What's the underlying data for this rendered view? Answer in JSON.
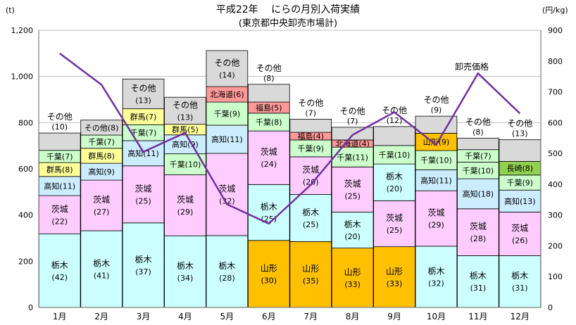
{
  "chart_data": {
    "type": "bar",
    "stacked": true,
    "title": "平成22年　 にらの月別入荷実績",
    "subtitle": "(東京都中央卸売市場計)",
    "left_unit": "(t)",
    "right_unit": "(円/kg)",
    "categories": [
      "1月",
      "2月",
      "3月",
      "4月",
      "5月",
      "6月",
      "7月",
      "8月",
      "9月",
      "10月",
      "11月",
      "12月"
    ],
    "ylim": [
      0,
      1200
    ],
    "yticks": [
      "0",
      "200",
      "400",
      "600",
      "800",
      "1,000",
      "1,200"
    ],
    "y2lim": [
      0,
      900
    ],
    "y2ticks": [
      "0",
      "100",
      "200",
      "300",
      "400",
      "500",
      "600",
      "700",
      "800",
      "900"
    ],
    "colors": {
      "栃木": "#ccffff",
      "山形": "#ffc000",
      "茨城": "#ffccff",
      "高知": "#ccecff",
      "千葉": "#ccffcc",
      "群馬": "#ffff99",
      "北海道": "#ff9999",
      "福島": "#ff9999",
      "長崎": "#92d050",
      "その他": "#d9d9d9",
      "line": "#7030a0"
    },
    "bars": [
      {
        "segments": [
          {
            "name": "栃木",
            "value": 318,
            "label": "栃木",
            "pct": "(42)"
          },
          {
            "name": "茨城",
            "value": 166,
            "label": "茨城",
            "pct": "(22)"
          },
          {
            "name": "高知",
            "value": 83,
            "label": "高知",
            "pct": "(11)",
            "inline": true
          },
          {
            "name": "群馬",
            "value": 60,
            "label": "群馬",
            "pct": "(8)",
            "inline": true
          },
          {
            "name": "千葉",
            "value": 53,
            "label": "千葉",
            "pct": "(7)",
            "inline": true
          },
          {
            "name": "その他",
            "value": 75,
            "label": "その他",
            "pct": "(10)",
            "above": true
          }
        ]
      },
      {
        "segments": [
          {
            "name": "栃木",
            "value": 332,
            "label": "栃木",
            "pct": "(41)"
          },
          {
            "name": "茨城",
            "value": 219,
            "label": "茨城",
            "pct": "(27)"
          },
          {
            "name": "高知",
            "value": 73,
            "label": "高知",
            "pct": "(9)",
            "inline": true
          },
          {
            "name": "群馬",
            "value": 65,
            "label": "群馬",
            "pct": "(8)",
            "inline": true
          },
          {
            "name": "千葉",
            "value": 57,
            "label": "千葉",
            "pct": "(7)",
            "inline": true
          },
          {
            "name": "その他",
            "value": 65,
            "label": "その他",
            "pct": "(8)",
            "inline": true
          }
        ]
      },
      {
        "segments": [
          {
            "name": "栃木",
            "value": 366,
            "label": "栃木",
            "pct": "(37)"
          },
          {
            "name": "茨城",
            "value": 247,
            "label": "茨城",
            "pct": "(25)"
          },
          {
            "name": "高知",
            "value": 109,
            "label": "高知",
            "pct": "(11)",
            "inline": true
          },
          {
            "name": "千葉",
            "value": 69,
            "label": "千葉",
            "pct": "(7)",
            "inline": true
          },
          {
            "name": "群馬",
            "value": 69,
            "label": "群馬",
            "pct": "(7)",
            "inline": true
          },
          {
            "name": "その他",
            "value": 129,
            "label": "その他",
            "pct": "(13)"
          }
        ]
      },
      {
        "segments": [
          {
            "name": "栃木",
            "value": 310,
            "label": "栃木",
            "pct": "(34)"
          },
          {
            "name": "茨城",
            "value": 264,
            "label": "茨城",
            "pct": "(29)"
          },
          {
            "name": "千葉",
            "value": 91,
            "label": "千葉",
            "pct": "(10)",
            "inline": true
          },
          {
            "name": "高知",
            "value": 82,
            "label": "高知",
            "pct": "(9)",
            "inline": true
          },
          {
            "name": "群馬",
            "value": 46,
            "label": "群馬",
            "pct": "(5)",
            "inline": true
          },
          {
            "name": "その他",
            "value": 117,
            "label": "その他",
            "pct": "(13)"
          }
        ]
      },
      {
        "segments": [
          {
            "name": "栃木",
            "value": 311,
            "label": "栃木",
            "pct": "(28)"
          },
          {
            "name": "茨城",
            "value": 356,
            "label": "茨城",
            "pct": "(32)"
          },
          {
            "name": "高知",
            "value": 122,
            "label": "高知",
            "pct": "(11)",
            "inline": true
          },
          {
            "name": "千葉",
            "value": 100,
            "label": "千葉",
            "pct": "(9)",
            "inline": true
          },
          {
            "name": "北海道",
            "value": 67,
            "label": "北海道",
            "pct": "(6)",
            "inline": true
          },
          {
            "name": "その他",
            "value": 156,
            "label": "その他",
            "pct": "(14)"
          }
        ]
      },
      {
        "segments": [
          {
            "name": "山形",
            "value": 290,
            "label": "山形",
            "pct": "(30)"
          },
          {
            "name": "栃木",
            "value": 242,
            "label": "栃木",
            "pct": "(25)"
          },
          {
            "name": "茨城",
            "value": 232,
            "label": "茨城",
            "pct": "(24)"
          },
          {
            "name": "千葉",
            "value": 77,
            "label": "千葉",
            "pct": "(8)",
            "inline": true
          },
          {
            "name": "福島",
            "value": 48,
            "label": "福島",
            "pct": "(5)",
            "inline": true
          },
          {
            "name": "その他",
            "value": 77,
            "label": "その他",
            "pct": "(8)",
            "above": true
          }
        ]
      },
      {
        "segments": [
          {
            "name": "山形",
            "value": 285,
            "label": "山形",
            "pct": "(35)"
          },
          {
            "name": "栃木",
            "value": 204,
            "label": "栃木",
            "pct": "(25)"
          },
          {
            "name": "茨城",
            "value": 163,
            "label": "茨城",
            "pct": "(20)"
          },
          {
            "name": "千葉",
            "value": 73,
            "label": "千葉",
            "pct": "(9)",
            "inline": true
          },
          {
            "name": "福島",
            "value": 33,
            "label": "福島",
            "pct": "(4)",
            "inline": true
          },
          {
            "name": "その他",
            "value": 57,
            "label": "その他",
            "pct": "(7)",
            "above": true
          }
        ]
      },
      {
        "segments": [
          {
            "name": "山形",
            "value": 257,
            "label": "山形",
            "pct": "(33)"
          },
          {
            "name": "栃木",
            "value": 156,
            "label": "栃木",
            "pct": "(20)"
          },
          {
            "name": "茨城",
            "value": 195,
            "label": "茨城",
            "pct": "(25)"
          },
          {
            "name": "千葉",
            "value": 86,
            "label": "千葉",
            "pct": "(11)",
            "inline": true
          },
          {
            "name": "北海道",
            "value": 31,
            "label": "北海道",
            "pct": "(4)",
            "inline": true
          },
          {
            "name": "その他",
            "value": 55,
            "label": "その他",
            "pct": "(7)",
            "above": true
          }
        ]
      },
      {
        "segments": [
          {
            "name": "山形",
            "value": 263,
            "label": "山形",
            "pct": "(33)"
          },
          {
            "name": "茨城",
            "value": 199,
            "label": "茨城",
            "pct": "(25)"
          },
          {
            "name": "栃木",
            "value": 159,
            "label": "栃木",
            "pct": "(20)"
          },
          {
            "name": "千葉",
            "value": 80,
            "label": "千葉",
            "pct": "(10)",
            "inline": true
          },
          {
            "name": "その他",
            "value": 82,
            "label": "その他",
            "pct": "(12)",
            "above": true
          }
        ]
      },
      {
        "segments": [
          {
            "name": "栃木",
            "value": 265,
            "label": "栃木",
            "pct": "(32)"
          },
          {
            "name": "茨城",
            "value": 240,
            "label": "茨城",
            "pct": "(29)"
          },
          {
            "name": "高知",
            "value": 91,
            "label": "高知",
            "pct": "(11)",
            "inline": true
          },
          {
            "name": "千葉",
            "value": 83,
            "label": "千葉",
            "pct": "(10)",
            "inline": true
          },
          {
            "name": "山形",
            "value": 75,
            "label": "山形",
            "pct": "(9)",
            "inline": true
          },
          {
            "name": "その他",
            "value": 74,
            "label": "その他",
            "pct": "(9)",
            "above": true
          }
        ]
      },
      {
        "segments": [
          {
            "name": "栃木",
            "value": 224,
            "label": "栃木",
            "pct": "(31)"
          },
          {
            "name": "茨城",
            "value": 203,
            "label": "茨城",
            "pct": "(28)"
          },
          {
            "name": "高知",
            "value": 130,
            "label": "高知",
            "pct": "(18)",
            "inline": true
          },
          {
            "name": "千葉",
            "value": 72,
            "label": "千葉",
            "pct": "(10)",
            "inline": true
          },
          {
            "name": "千葉",
            "value": 54,
            "label": "千葉",
            "pct": "(7)",
            "inline": true
          },
          {
            "name": "その他",
            "value": 50,
            "label": "その他",
            "pct": "(8)",
            "above": true
          }
        ]
      },
      {
        "segments": [
          {
            "name": "栃木",
            "value": 224,
            "label": "栃木",
            "pct": "(31)"
          },
          {
            "name": "茨城",
            "value": 189,
            "label": "茨城",
            "pct": "(26)"
          },
          {
            "name": "高知",
            "value": 95,
            "label": "高知",
            "pct": "(13)",
            "inline": true
          },
          {
            "name": "千葉",
            "value": 65,
            "label": "千葉",
            "pct": "(9)",
            "inline": true
          },
          {
            "name": "長崎",
            "value": 59,
            "label": "長崎",
            "pct": "(8)",
            "inline": true
          },
          {
            "name": "その他",
            "value": 94,
            "label": "その他",
            "pct": "(13)",
            "above": true
          }
        ]
      }
    ],
    "price_series": {
      "name": "卸売価格",
      "values": [
        825,
        723,
        505,
        567,
        335,
        272,
        398,
        560,
        634,
        528,
        760,
        630
      ]
    }
  }
}
